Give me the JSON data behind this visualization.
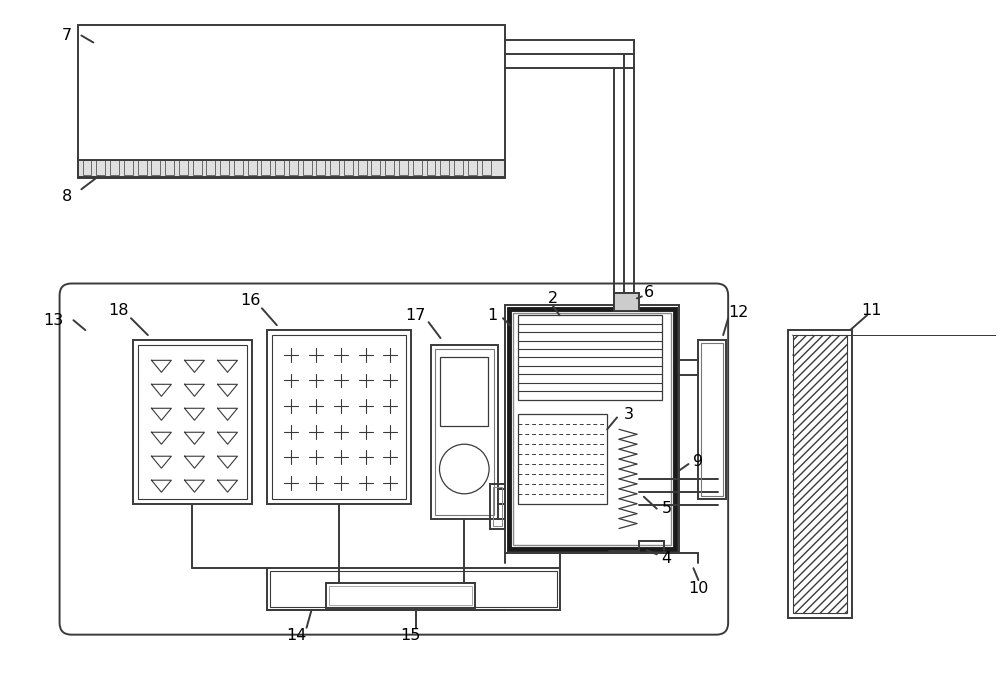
{
  "bg_color": "#ffffff",
  "lc": "#3a3a3a",
  "lw": 1.4,
  "figsize": [
    10.0,
    6.91
  ],
  "dpi": 100
}
